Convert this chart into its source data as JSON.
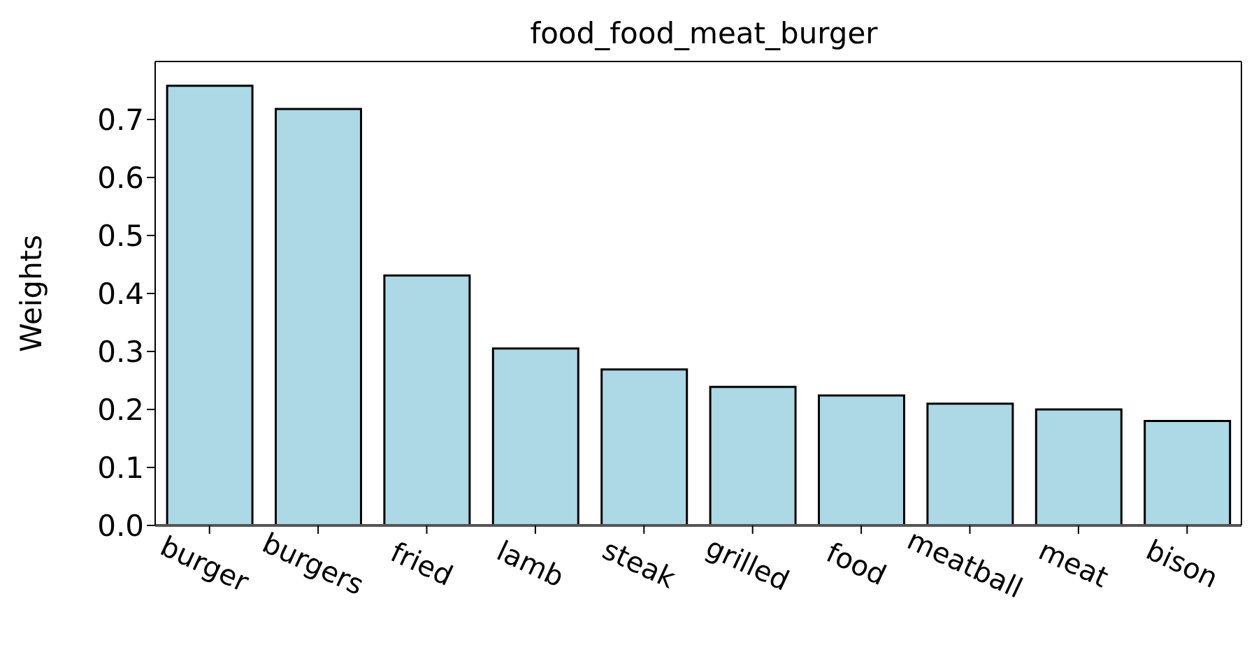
{
  "chart_data": {
    "type": "bar",
    "title": "food_food_meat_burger",
    "ylabel": "Weights",
    "categories": [
      "burger",
      "burgers",
      "fried",
      "lamb",
      "steak",
      "grilled",
      "food",
      "meatball",
      "meat",
      "bison"
    ],
    "values": [
      0.758,
      0.718,
      0.431,
      0.305,
      0.269,
      0.239,
      0.224,
      0.21,
      0.2,
      0.18
    ],
    "color": "#add8e6",
    "ylim": [
      0,
      0.8
    ],
    "yticks": [
      {
        "value": 0,
        "label": "0.0"
      },
      {
        "value": 0.1,
        "label": "0.1"
      },
      {
        "value": 0.2,
        "label": "0.2"
      },
      {
        "value": 0.3,
        "label": "0.3"
      },
      {
        "value": 0.4,
        "label": "0.4"
      },
      {
        "value": 0.5,
        "label": "0.5"
      },
      {
        "value": 0.6,
        "label": "0.6"
      },
      {
        "value": 0.7,
        "label": "0.7"
      }
    ]
  }
}
